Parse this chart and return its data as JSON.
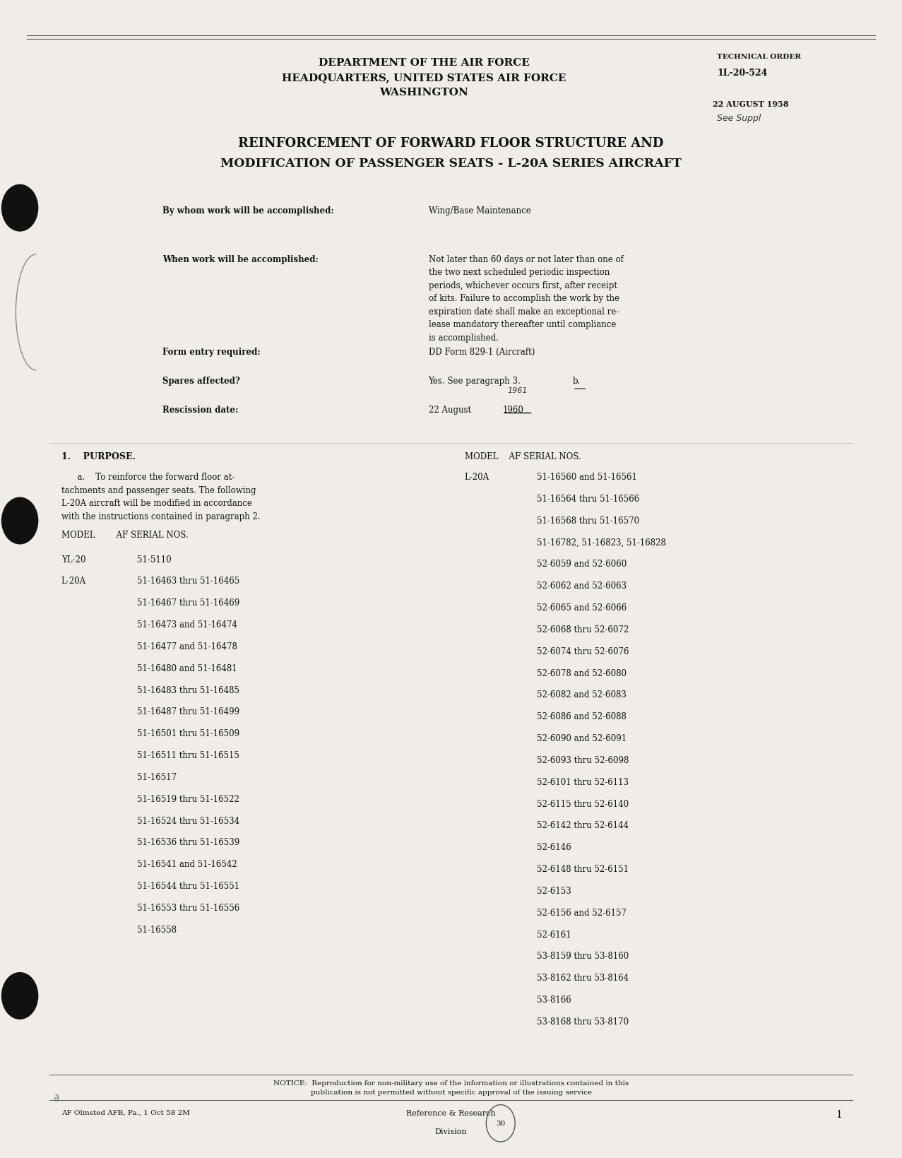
{
  "bg_color": "#f0ede8",
  "text_color": "#1a1a1a",
  "page_width": 12.77,
  "page_height": 16.4,
  "header_line1": "DEPARTMENT OF THE AIR FORCE",
  "header_line2": "HEADQUARTERS, UNITED STATES AIR FORCE",
  "header_line3": "WASHINGTON",
  "tech_order_label": "TECHNICAL ORDER",
  "tech_order_number": "1L-20-524",
  "date_line": "22 AUGUST 1958",
  "main_title_line1": "REINFORCEMENT OF FORWARD FLOOR STRUCTURE AND",
  "main_title_line2": "MODIFICATION OF PASSENGER SEATS - L-20A SERIES AIRCRAFT",
  "field_labels": [
    "By whom work will be accomplished:",
    "When work will be accomplished:",
    "Form entry required:",
    "Spares affected?",
    "Rescission date:"
  ],
  "purpose_heading": "1.    PURPOSE.",
  "left_serial_data": [
    [
      "YL-20",
      "51-5110"
    ],
    [
      "L-20A",
      "51-16463 thru 51-16465"
    ],
    [
      "",
      "51-16467 thru 51-16469"
    ],
    [
      "",
      "51-16473 and 51-16474"
    ],
    [
      "",
      "51-16477 and 51-16478"
    ],
    [
      "",
      "51-16480 and 51-16481"
    ],
    [
      "",
      "51-16483 thru 51-16485"
    ],
    [
      "",
      "51-16487 thru 51-16499"
    ],
    [
      "",
      "51-16501 thru 51-16509"
    ],
    [
      "",
      "51-16511 thru 51-16515"
    ],
    [
      "",
      "51-16517"
    ],
    [
      "",
      "51-16519 thru 51-16522"
    ],
    [
      "",
      "51-16524 thru 51-16534"
    ],
    [
      "",
      "51-16536 thru 51-16539"
    ],
    [
      "",
      "51-16541 and 51-16542"
    ],
    [
      "",
      "51-16544 thru 51-16551"
    ],
    [
      "",
      "51-16553 thru 51-16556"
    ],
    [
      "",
      "51-16558"
    ]
  ],
  "right_serial_data": [
    [
      "L-20A",
      "51-16560 and 51-16561"
    ],
    [
      "",
      "51-16564 thru 51-16566"
    ],
    [
      "",
      "51-16568 thru 51-16570"
    ],
    [
      "",
      "51-16782, 51-16823, 51-16828"
    ],
    [
      "",
      "52-6059 and 52-6060"
    ],
    [
      "",
      "52-6062 and 52-6063"
    ],
    [
      "",
      "52-6065 and 52-6066"
    ],
    [
      "",
      "52-6068 thru 52-6072"
    ],
    [
      "",
      "52-6074 thru 52-6076"
    ],
    [
      "",
      "52-6078 and 52-6080"
    ],
    [
      "",
      "52-6082 and 52-6083"
    ],
    [
      "",
      "52-6086 and 52-6088"
    ],
    [
      "",
      "52-6090 and 52-6091"
    ],
    [
      "",
      "52-6093 thru 52-6098"
    ],
    [
      "",
      "52-6101 thru 52-6113"
    ],
    [
      "",
      "52-6115 thru 52-6140"
    ],
    [
      "",
      "52-6142 thru 52-6144"
    ],
    [
      "",
      "52-6146"
    ],
    [
      "",
      "52-6148 thru 52-6151"
    ],
    [
      "",
      "52-6153"
    ],
    [
      "",
      "52-6156 and 52-6157"
    ],
    [
      "",
      "52-6161"
    ],
    [
      "",
      "53-8159 thru 53-8160"
    ],
    [
      "",
      "53-8162 thru 53-8164"
    ],
    [
      "",
      "53-8166"
    ],
    [
      "",
      "53-8168 thru 53-8170"
    ]
  ],
  "notice_text": "NOTICE:  Reproduction for non-military use of the information or illustrations contained in this\npublication is not permitted without specific approval of the issuing service",
  "footer_left": "AF Olmsted AFB, Pa., 1 Oct 58 2M",
  "footer_number": "1",
  "stamp_text": "30"
}
